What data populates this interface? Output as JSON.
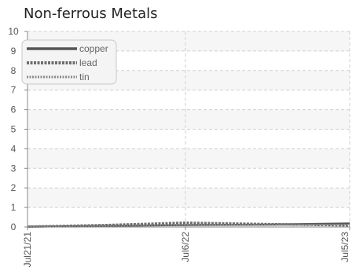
{
  "chart_data": {
    "type": "line",
    "title": "Non-ferrous Metals",
    "xlabel": "",
    "ylabel": "",
    "x_ticks": [
      "Jul21/21",
      "Jul6/22",
      "Jul5/23"
    ],
    "y_ticks": [
      "0",
      "1",
      "2",
      "3",
      "4",
      "5",
      "6",
      "7",
      "8",
      "9",
      "10"
    ],
    "ylim": [
      0,
      10
    ],
    "grid": true,
    "legend_position": "top-left",
    "x": [
      "2021-07-21",
      "2022-01-12",
      "2022-07-06",
      "2022-12-30",
      "2023-07-05"
    ],
    "series": [
      {
        "name": "copper",
        "values": [
          0.02,
          0.06,
          0.1,
          0.12,
          0.18
        ]
      },
      {
        "name": "lead",
        "values": [
          0.02,
          0.1,
          0.22,
          0.15,
          0.08
        ]
      },
      {
        "name": "tin",
        "values": [
          0.01,
          0.04,
          0.12,
          0.1,
          0.12
        ]
      }
    ],
    "colors": {
      "copper": "#555555",
      "lead": "#6e6e6e",
      "tin": "#8a8a8a"
    }
  }
}
